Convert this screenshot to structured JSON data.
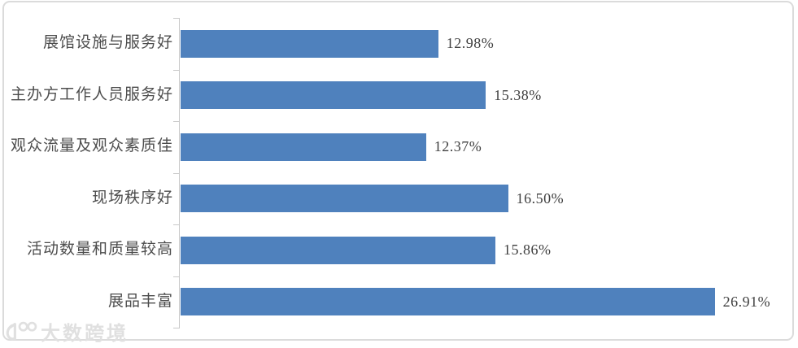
{
  "chart_data": {
    "type": "bar",
    "orientation": "horizontal",
    "title": "",
    "xlabel": "",
    "ylabel": "",
    "xlim": [
      0,
      30
    ],
    "grid": false,
    "legend": false,
    "categories": [
      "展馆设施与服务好",
      "主办方工作人员服务好",
      "观众流量及观众素质佳",
      "现场秩序好",
      "活动数量和质量较高",
      "展品丰富"
    ],
    "values": [
      12.98,
      15.38,
      12.37,
      16.5,
      15.86,
      26.91
    ],
    "value_labels": [
      "12.98%",
      "15.38%",
      "12.37%",
      "16.50%",
      "15.86%",
      "26.91%"
    ]
  },
  "watermark": {
    "logo": "10-double-circle-logo",
    "text": "大数跨境"
  },
  "colors": {
    "bar": "#4F81BD",
    "axis": "#C9C9C9",
    "border": "#DBDBDB",
    "category_text": "#4D4D4D",
    "value_text": "#3F3F3F",
    "watermark": "#E0E0E0"
  }
}
